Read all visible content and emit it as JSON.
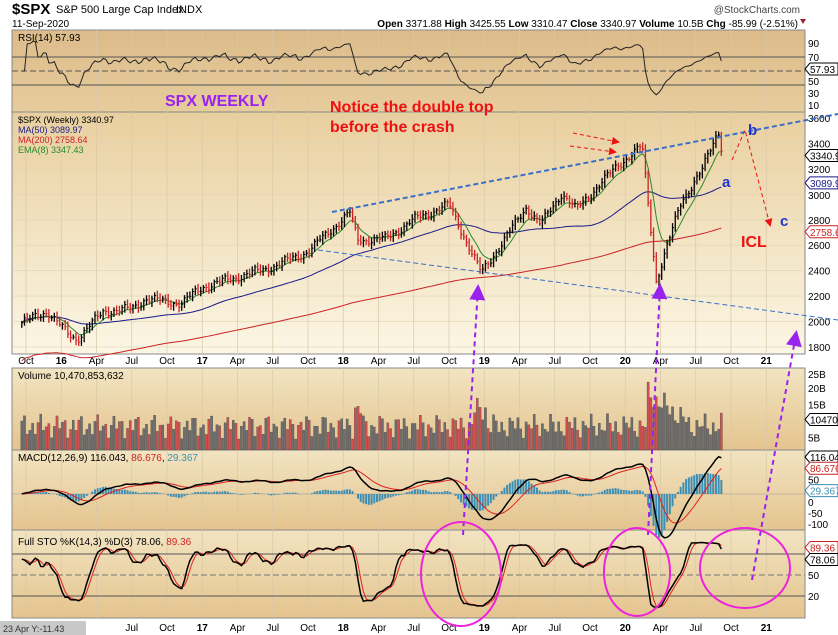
{
  "header": {
    "symbol": "$SPX",
    "name": "S&P 500 Large Cap Index",
    "exchange": "INDX",
    "date": "11-Sep-2020",
    "brand": "@StockCharts.com",
    "quote": {
      "open_label": "Open",
      "open": "3371.88",
      "high_label": "High",
      "high": "3425.55",
      "low_label": "Low",
      "low": "3310.47",
      "close_label": "Close",
      "close": "3340.97",
      "volume_label": "Volume",
      "volume": "10.5B",
      "chg_label": "Chg",
      "chg": "-85.99 (-2.51%)"
    }
  },
  "colors": {
    "price_up": "#000000",
    "price_down": "#cc2222",
    "ma50": "#1a1a8c",
    "ma200": "#cc2222",
    "ema8": "#2a8a2a",
    "trendline": "#3a6fc8",
    "annotation_red": "#ee1111",
    "annotation_purple": "#9a22ee",
    "circle": "#ee22dd",
    "macd_hist": "#3d8fb5"
  },
  "chart_data": {
    "type": "candlestick",
    "title": "$SPX S&P 500 Large Cap Index INDX (Weekly)",
    "x_ticks": [
      "Oct",
      "16",
      "Apr",
      "Jul",
      "Oct",
      "17",
      "Apr",
      "Jul",
      "Oct",
      "18",
      "Apr",
      "Jul",
      "Oct",
      "19",
      "Apr",
      "Jul",
      "Oct",
      "20",
      "Apr",
      "Jul",
      "Oct",
      "21"
    ],
    "price_axis": {
      "ticks": [
        3600,
        3400,
        3200,
        3000,
        2800,
        2600,
        2400,
        2200,
        2000,
        1800
      ],
      "ylim": [
        1750,
        3650
      ]
    },
    "price_keypoints": {
      "t": [
        2015.72,
        2015.9,
        2016.05,
        2016.11,
        2016.3,
        2016.5,
        2016.6,
        2016.85,
        2017.0,
        2017.5,
        2017.75,
        2018.05,
        2018.1,
        2018.3,
        2018.5,
        2018.75,
        2018.98,
        2019.3,
        2019.4,
        2019.55,
        2019.65,
        2019.95,
        2020.12,
        2020.22,
        2020.4,
        2020.55,
        2020.66,
        2020.7
      ],
      "close": [
        1990,
        2080,
        1900,
        1860,
        2080,
        2100,
        2180,
        2140,
        2270,
        2430,
        2550,
        2860,
        2640,
        2650,
        2800,
        2920,
        2380,
        2900,
        2760,
        3010,
        2880,
        3230,
        3380,
        2320,
        2950,
        3200,
        3500,
        3340
      ]
    },
    "legend": {
      "price": "$SPX (Weekly) 3340.97",
      "ma50": "MA(50) 3089.97",
      "ma200": "MA(200) 2758.64",
      "ema8": "EMA(8) 3347.43"
    },
    "last_values": {
      "price": "3340.97",
      "ma50": "3089.97",
      "ma200": "2758.64"
    },
    "rsi": {
      "label": "RSI(14) 57.93",
      "value": "57.93",
      "ticks": [
        90,
        70,
        50,
        30,
        10
      ]
    },
    "volume": {
      "label": "Volume 10,470,853,632",
      "last": "10470853632",
      "last_tag": "10470853632",
      "ticks": [
        "25B",
        "20B",
        "15B",
        "5B"
      ]
    },
    "macd": {
      "label_prefix": "MACD(12,26,9)",
      "macd": "116.043",
      "signal": "86.676",
      "hist": "29.367",
      "ticks": [
        50,
        0,
        -50,
        -100
      ]
    },
    "sto": {
      "label_prefix": "Full STO %K(14,3) %D(3)",
      "k": "78.06",
      "d": "89.36",
      "ticks": [
        50,
        20
      ]
    },
    "annotations": {
      "title": "SPX WEEKLY",
      "note_line1": "Notice the double top",
      "note_line2": "before the crash",
      "wave_a": "a",
      "wave_b": "b",
      "wave_c": "c",
      "icl": "ICL"
    }
  },
  "footer": {
    "cursor_readout": "23 Apr Y:-11.43"
  }
}
